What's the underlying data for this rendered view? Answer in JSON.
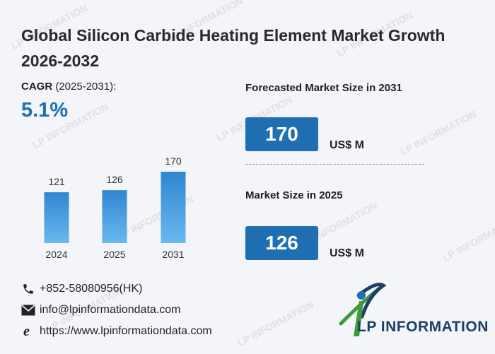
{
  "title": "Global Silicon Carbide Heating Element Market Growth 2026-2032",
  "cagr": {
    "label_bold": "CAGR",
    "label_rest": " (2025-2031):",
    "value": "5.1%"
  },
  "forecast": {
    "label": "Forecasted Market Size in 2031",
    "value": "170",
    "unit": "US$ M"
  },
  "current": {
    "label": "Market Size in 2025",
    "value": "126",
    "unit": "US$ M"
  },
  "contacts": {
    "phone": "+852-58080956(HK)",
    "email": "info@lpinformationdata.com",
    "website": "https://www.lpinformationdata.com"
  },
  "logo": {
    "text": "LP INFORMATION"
  },
  "watermark": "LP INFORMATION",
  "colors": {
    "accent": "#1f6fb2",
    "bar_top": "#2f86d1",
    "bar_bottom": "#6ab8ee",
    "logo_green": "#3a9b3a",
    "logo_navy": "#1d3f66"
  },
  "chart_data": {
    "type": "bar",
    "categories": [
      "2024",
      "2025",
      "2031"
    ],
    "values": [
      121,
      126,
      170
    ],
    "title": "",
    "xlabel": "",
    "ylabel": "",
    "ylim": [
      0,
      170
    ]
  }
}
